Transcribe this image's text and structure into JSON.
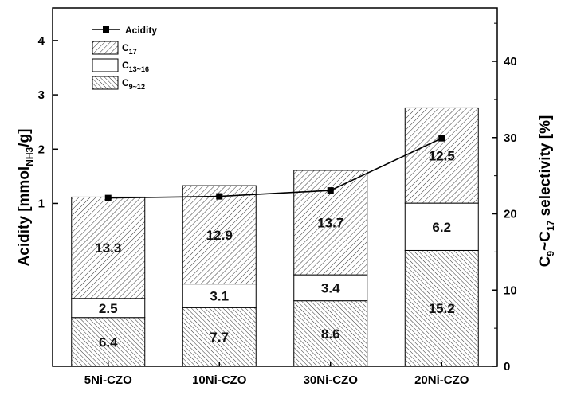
{
  "chart_data": {
    "type": "bar",
    "categories": [
      "5Ni-CZO",
      "10Ni-CZO",
      "30Ni-CZO",
      "20Ni-CZO"
    ],
    "series": [
      {
        "name_main": "C",
        "name_sub": "9~12",
        "values": [
          6.4,
          7.7,
          8.6,
          15.2
        ],
        "pattern": "diag-up-dense"
      },
      {
        "name_main": "C",
        "name_sub": "13~16",
        "values": [
          2.5,
          3.1,
          3.4,
          6.2
        ],
        "pattern": "none"
      },
      {
        "name_main": "C",
        "name_sub": "17",
        "values": [
          13.3,
          12.9,
          13.7,
          12.5
        ],
        "pattern": "diag-down"
      }
    ],
    "line_series": {
      "name": "Acidity",
      "values": [
        1.1,
        1.13,
        1.24,
        2.2
      ]
    },
    "right_axis": {
      "label_main": "C",
      "label_sub1": "9",
      "label_mid": "~C",
      "label_sub2": "17",
      "label_tail": " selectivity [%]",
      "ylim": [
        0,
        47
      ],
      "ticks": [
        "0",
        "10",
        "20",
        "30",
        "40"
      ],
      "tick_values": [
        0,
        10,
        20,
        30,
        40
      ]
    },
    "left_axis": {
      "label_main": "Acidity [mmol",
      "label_sub": "NH3",
      "label_tail": "/g]",
      "ylim": [
        -2.0,
        4.6
      ],
      "ticks": [
        "1",
        "2",
        "3",
        "4"
      ],
      "tick_values": [
        1,
        2,
        3,
        4
      ]
    },
    "legend": {
      "position": "top-left",
      "acidity_label": "Acidity"
    },
    "grid": false
  }
}
